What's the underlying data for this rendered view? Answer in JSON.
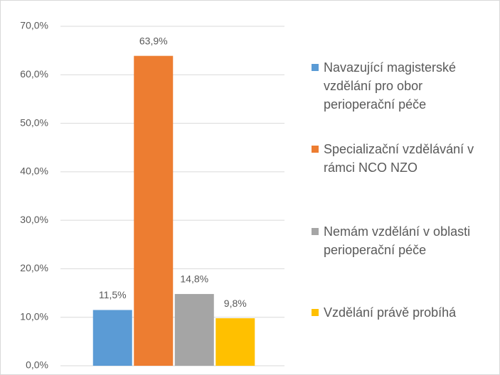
{
  "chart_data": {
    "type": "bar",
    "categories": [
      null
    ],
    "series": [
      {
        "name": "Navazující magisterské vzdělání pro obor perioperační péče",
        "color": "#5b9bd5",
        "values": [
          11.5
        ],
        "value_labels": [
          "11,5%"
        ]
      },
      {
        "name": "Specializační vzdělávání v rámci NCO NZO",
        "color": "#ed7d31",
        "values": [
          63.9
        ],
        "value_labels": [
          "63,9%"
        ]
      },
      {
        "name": "Nemám vzdělání v oblasti perioperační péče",
        "color": "#a5a5a5",
        "values": [
          14.8
        ],
        "value_labels": [
          "14,8%"
        ]
      },
      {
        "name": "Vzdělání právě probíhá",
        "color": "#ffc000",
        "values": [
          9.8
        ],
        "value_labels": [
          "9,8%"
        ]
      }
    ],
    "ylim": [
      0,
      70
    ],
    "yticks": [
      {
        "value": 0,
        "label": "0,0%"
      },
      {
        "value": 10,
        "label": "10,0%"
      },
      {
        "value": 20,
        "label": "20,0%"
      },
      {
        "value": 30,
        "label": "30,0%"
      },
      {
        "value": 40,
        "label": "40,0%"
      },
      {
        "value": 50,
        "label": "50,0%"
      },
      {
        "value": 60,
        "label": "60,0%"
      },
      {
        "value": 70,
        "label": "70,0%"
      }
    ],
    "grid": true,
    "legend": "right"
  }
}
